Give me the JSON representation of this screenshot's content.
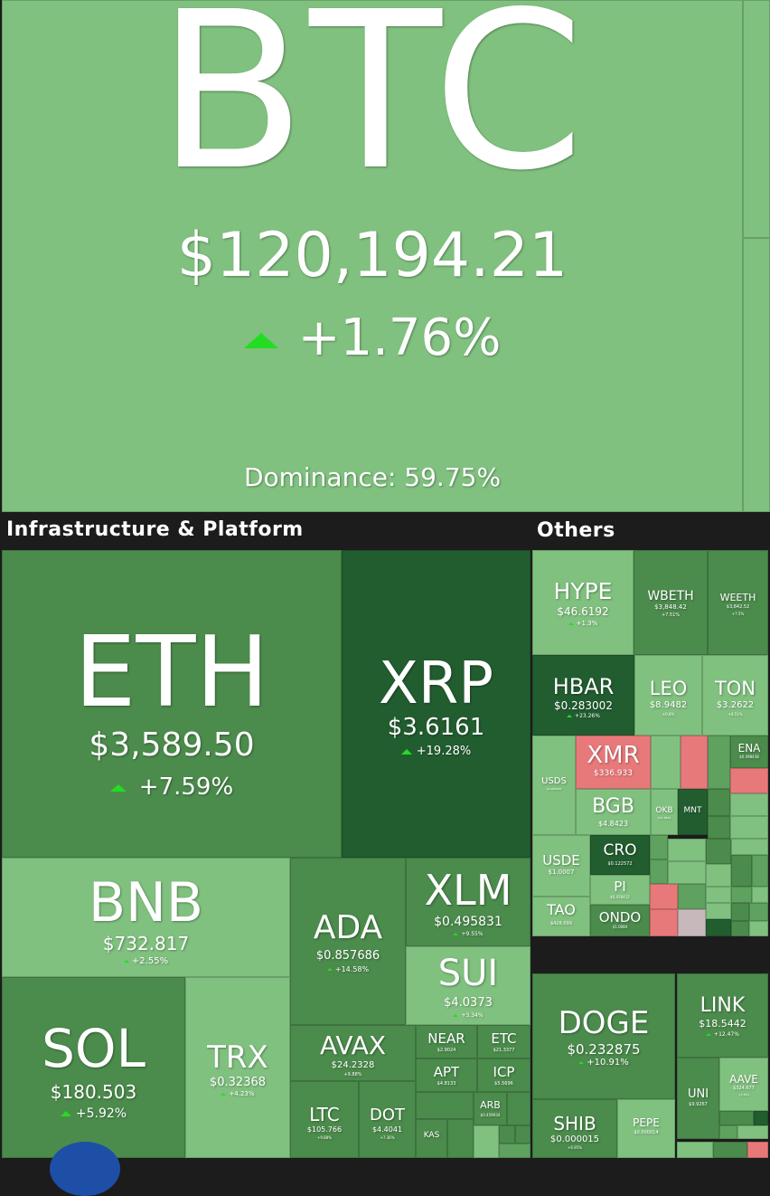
{
  "btc": {
    "symbol": "BTC",
    "price": "$120,194.21",
    "change": "+1.76%",
    "dominance": "Dominance: 59.75%"
  },
  "sections": {
    "infra": "Infrastructure & Platform",
    "others": "Others"
  },
  "infra": {
    "eth": {
      "symbol": "ETH",
      "price": "$3,589.50",
      "change": "+7.59%"
    },
    "xrp": {
      "symbol": "XRP",
      "price": "$3.6161",
      "change": "+19.28%"
    },
    "bnb": {
      "symbol": "BNB",
      "price": "$732.817",
      "change": "+2.55%"
    },
    "ada": {
      "symbol": "ADA",
      "price": "$0.857686",
      "change": "+14.58%"
    },
    "xlm": {
      "symbol": "XLM",
      "price": "$0.495831",
      "change": "+9.55%"
    },
    "sui": {
      "symbol": "SUI",
      "price": "$4.0373",
      "change": "+3.34%"
    },
    "sol": {
      "symbol": "SOL",
      "price": "$180.503",
      "change": "+5.92%"
    },
    "trx": {
      "symbol": "TRX",
      "price": "$0.32368",
      "change": "+4.23%"
    },
    "avax": {
      "symbol": "AVAX",
      "price": "$24.2328",
      "change": "+9.88%"
    },
    "near": {
      "symbol": "NEAR",
      "price": "$2.9024"
    },
    "etc": {
      "symbol": "ETC",
      "price": "$21.3377"
    },
    "apt": {
      "symbol": "APT",
      "price": "$4.8133"
    },
    "icp": {
      "symbol": "ICP",
      "price": "$5.5696"
    },
    "arb": {
      "symbol": "ARB",
      "price": "$0.459934"
    },
    "kas": {
      "symbol": "KAS"
    },
    "ltc": {
      "symbol": "LTC",
      "price": "$105.766",
      "change": "+9.88%"
    },
    "dot": {
      "symbol": "DOT",
      "price": "$4.4041",
      "change": "+7.36%"
    }
  },
  "others": {
    "hype": {
      "symbol": "HYPE",
      "price": "$46.6192",
      "change": "+1.3%"
    },
    "wbeth": {
      "symbol": "WBETH",
      "price": "$3,848.42",
      "change": "+7.51%"
    },
    "weeth": {
      "symbol": "WEETH",
      "price": "$3,842.52",
      "change": "+7.5%"
    },
    "hbar": {
      "symbol": "HBAR",
      "price": "$0.283002",
      "change": "+23.26%"
    },
    "leo": {
      "symbol": "LEO",
      "price": "$8.9482",
      "change": "+0.6%"
    },
    "ton": {
      "symbol": "TON",
      "price": "$3.2622",
      "change": "+4.51%"
    },
    "xmr": {
      "symbol": "XMR",
      "price": "$336.933"
    },
    "ena": {
      "symbol": "ENA",
      "price": "$0.498438"
    },
    "usds": {
      "symbol": "USDS",
      "price": "$0.999938"
    },
    "bgb": {
      "symbol": "BGB",
      "price": "$4.8423"
    },
    "okb": {
      "symbol": "OKB",
      "price": "$47.3849"
    },
    "mnt": {
      "symbol": "MNT"
    },
    "usde": {
      "symbol": "USDE",
      "price": "$1.0007"
    },
    "cro": {
      "symbol": "CRO",
      "price": "$0.122572"
    },
    "pi": {
      "symbol": "PI",
      "price": "$0.456412"
    },
    "tao": {
      "symbol": "TAO",
      "price": "$428.099"
    },
    "ondo": {
      "symbol": "ONDO",
      "price": "$1.0084"
    },
    "doge": {
      "symbol": "DOGE",
      "price": "$0.232875",
      "change": "+10.91%"
    },
    "link": {
      "symbol": "LINK",
      "price": "$18.5442",
      "change": "+12.47%"
    },
    "aave": {
      "symbol": "AAVE",
      "price": "$324.677",
      "change": "+7.39%"
    },
    "uni": {
      "symbol": "UNI",
      "price": "$9.9267"
    },
    "shib": {
      "symbol": "SHIB",
      "price": "$0.000015",
      "change": "+6.95%"
    },
    "pepe": {
      "symbol": "PEPE",
      "price": "$0.000014"
    }
  },
  "colors": {
    "up_light": "#80c17f",
    "up_mid": "#5fa15f",
    "up_dark": "#225d30",
    "down": "#e8797a",
    "arrow": "#22dd22",
    "background": "#1c1c1c"
  }
}
